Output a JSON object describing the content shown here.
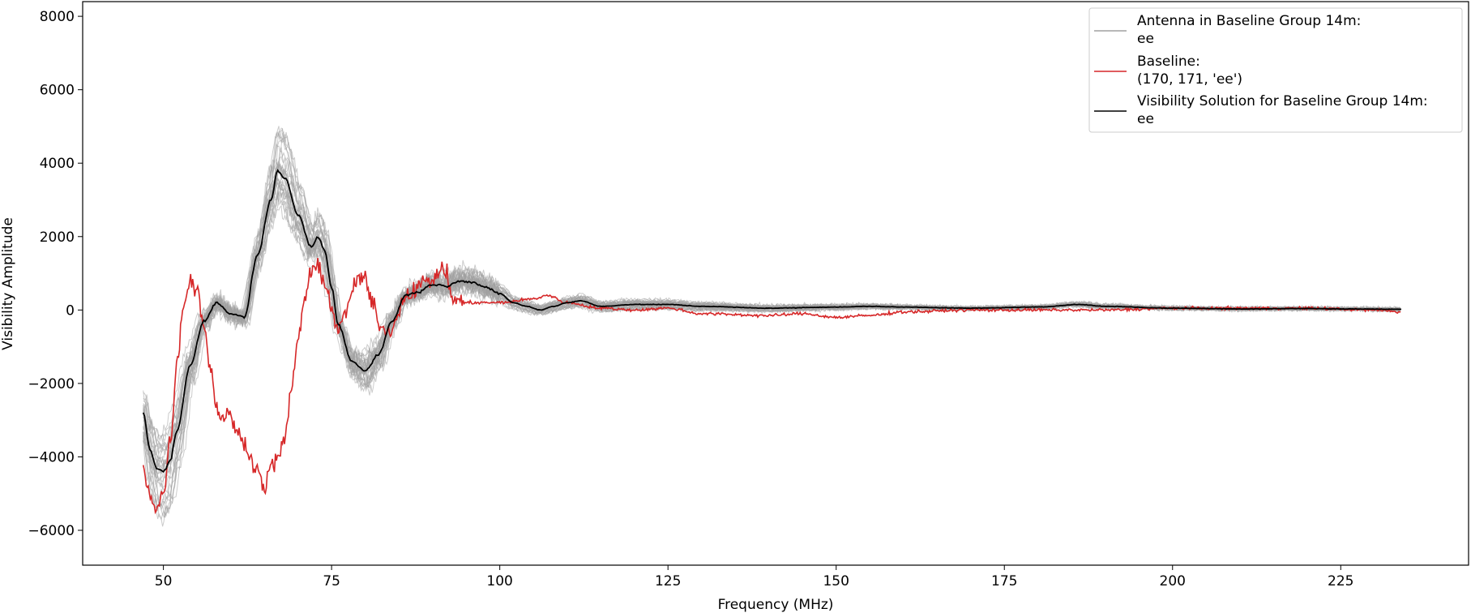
{
  "chart_data": {
    "type": "line",
    "xlabel": "Frequency (MHz)",
    "ylabel": "Visibility Amplitude",
    "xlim": [
      38,
      244
    ],
    "ylim": [
      -6950,
      8400
    ],
    "xticks": [
      50,
      75,
      100,
      125,
      150,
      175,
      200,
      225
    ],
    "xtick_labels": [
      "50",
      "75",
      "100",
      "125",
      "150",
      "175",
      "200",
      "225"
    ],
    "yticks": [
      -6000,
      -4000,
      -2000,
      0,
      2000,
      4000,
      6000,
      8000
    ],
    "ytick_labels": [
      "−6000",
      "−4000",
      "−2000",
      "0",
      "2000",
      "4000",
      "6000",
      "8000"
    ],
    "grid": false,
    "legend_position": "top-right",
    "legend": [
      {
        "line1": "Antenna in Baseline Group 14m:",
        "line2": "ee",
        "color": "#a0a0a0"
      },
      {
        "line1": "Baseline:",
        "line2": "(170, 171, 'ee')",
        "color": "#d62728"
      },
      {
        "line1": "Visibility Solution for Baseline Group 14m:",
        "line2": "ee",
        "color": "#000000"
      }
    ],
    "series": [
      {
        "name": "Antenna in Baseline Group 14m:\nee",
        "role": "antenna",
        "color": "#a0a0a0",
        "count": 30,
        "x": [
          47,
          48,
          49,
          50,
          51,
          52,
          54,
          56,
          58,
          60,
          62,
          64,
          66,
          67,
          68,
          70,
          72,
          73,
          74,
          75,
          76,
          78,
          80,
          82,
          84,
          86,
          88,
          90,
          92,
          94,
          96,
          98,
          100,
          102,
          104,
          106,
          108,
          110,
          112,
          115,
          120,
          125,
          130,
          140,
          150,
          155,
          160,
          170,
          180,
          186,
          190,
          200,
          210,
          220,
          225,
          234
        ]
      },
      {
        "name": "Baseline:\n(170, 171, 'ee')",
        "role": "baseline",
        "color": "#d62728",
        "x": [
          47,
          48,
          49,
          50,
          51,
          52,
          53,
          54,
          55,
          56,
          57,
          58,
          59,
          60,
          61,
          62,
          63,
          64,
          65,
          66,
          67,
          68,
          69,
          70,
          71,
          72,
          73,
          74,
          75,
          76,
          77,
          78,
          79,
          80,
          81,
          82,
          83,
          84,
          85,
          86,
          87,
          88,
          90,
          91,
          92,
          93,
          95,
          100,
          105,
          107,
          110,
          115,
          120,
          125,
          130,
          140,
          145,
          150,
          155,
          160,
          170,
          180,
          190,
          200,
          210,
          220,
          230,
          234
        ],
        "values": [
          -4300,
          -5000,
          -5400,
          -5000,
          -3600,
          -1500,
          200,
          800,
          600,
          -400,
          -1600,
          -2700,
          -3000,
          -2800,
          -3400,
          -3600,
          -4000,
          -4400,
          -4800,
          -4300,
          -4000,
          -3600,
          -2200,
          -800,
          300,
          1000,
          1200,
          800,
          0,
          -500,
          -200,
          500,
          900,
          800,
          200,
          -300,
          -600,
          -500,
          0,
          400,
          500,
          700,
          800,
          1100,
          1000,
          300,
          200,
          200,
          300,
          400,
          200,
          50,
          0,
          50,
          -100,
          -150,
          -100,
          -200,
          -150,
          -50,
          0,
          0,
          0,
          50,
          50,
          50,
          0,
          -50
        ]
      },
      {
        "name": "Visibility Solution for Baseline Group 14m:\nee",
        "role": "solution",
        "color": "#000000",
        "x": [
          47,
          48,
          49,
          50,
          51,
          52,
          54,
          56,
          58,
          60,
          62,
          64,
          66,
          67,
          68,
          70,
          72,
          73,
          74,
          75,
          76,
          78,
          80,
          82,
          84,
          86,
          88,
          90,
          92,
          94,
          96,
          98,
          100,
          102,
          104,
          106,
          108,
          110,
          112,
          115,
          120,
          125,
          130,
          140,
          150,
          155,
          160,
          170,
          180,
          186,
          190,
          200,
          210,
          220,
          225,
          234
        ],
        "values": [
          -2800,
          -3800,
          -4300,
          -4400,
          -4100,
          -3300,
          -1500,
          -300,
          200,
          -100,
          -200,
          1500,
          3000,
          3800,
          3600,
          2600,
          1700,
          2000,
          1600,
          600,
          -400,
          -1400,
          -1650,
          -1200,
          -300,
          400,
          500,
          700,
          650,
          800,
          750,
          600,
          450,
          200,
          100,
          0,
          100,
          200,
          250,
          100,
          150,
          150,
          100,
          50,
          80,
          100,
          80,
          50,
          80,
          150,
          100,
          50,
          30,
          40,
          30,
          20
        ]
      }
    ]
  }
}
